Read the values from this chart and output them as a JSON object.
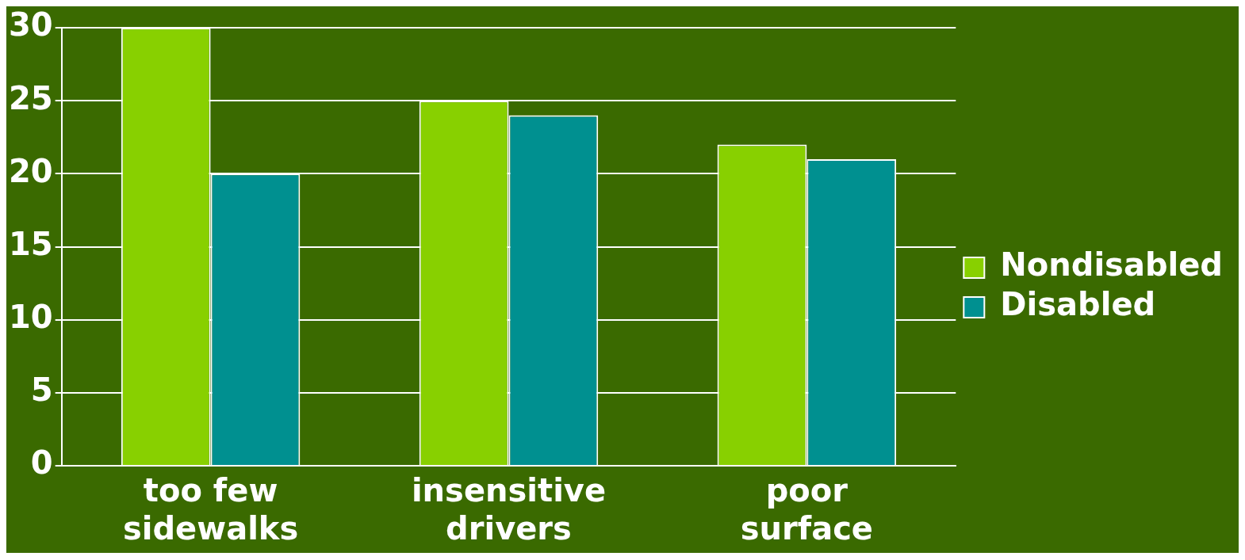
{
  "chart_data": {
    "type": "bar",
    "categories": [
      "too few sidewalks",
      "insensitive drivers",
      "poor surface"
    ],
    "series": [
      {
        "name": "Nondisabled",
        "color": "#88d000",
        "values": [
          30,
          25,
          22
        ]
      },
      {
        "name": "Disabled",
        "color": "#009090",
        "values": [
          20,
          24,
          21
        ]
      }
    ],
    "ylim": [
      0,
      30
    ],
    "yticks": [
      0,
      5,
      10,
      15,
      20,
      25,
      30
    ],
    "grid": "y",
    "legend": "right"
  }
}
